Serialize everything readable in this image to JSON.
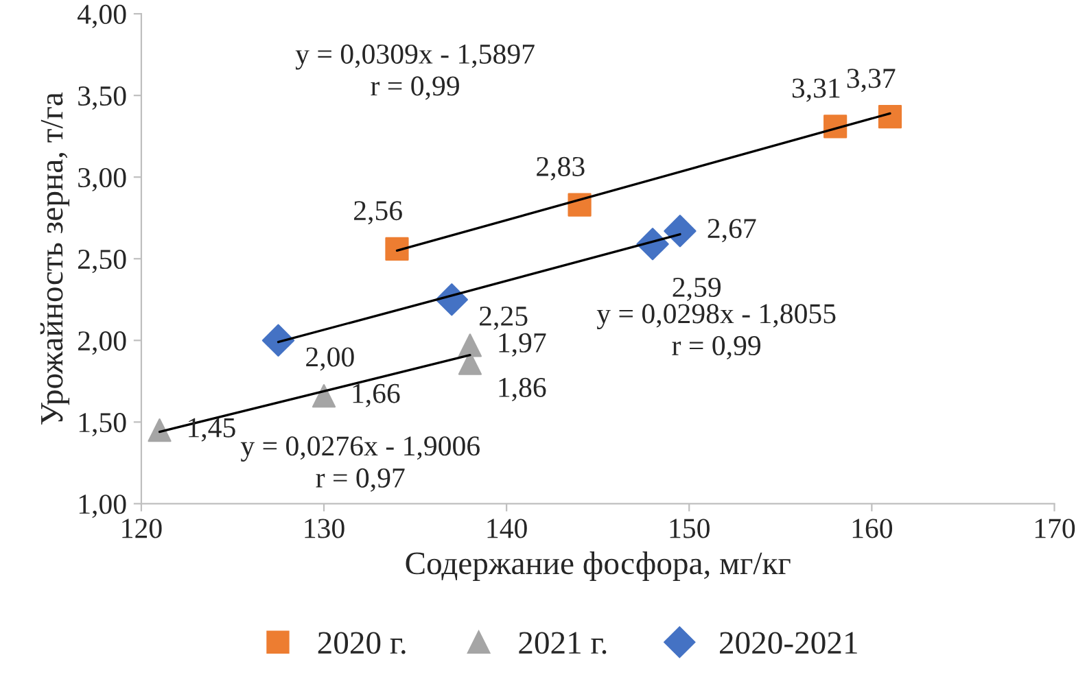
{
  "chart_data": {
    "type": "scatter",
    "xlabel": "Содержание фосфора, мг/кг",
    "ylabel": "Урожайность зерна, т/га",
    "xlim": [
      120,
      170
    ],
    "xticks": [
      120,
      130,
      140,
      150,
      160,
      170
    ],
    "ylim": [
      1.0,
      4.0
    ],
    "yticks": [
      {
        "value": 1.0,
        "label": "1,00"
      },
      {
        "value": 1.5,
        "label": "1,50"
      },
      {
        "value": 2.0,
        "label": "2,00"
      },
      {
        "value": 2.5,
        "label": "2,50"
      },
      {
        "value": 3.0,
        "label": "3,00"
      },
      {
        "value": 3.5,
        "label": "3,50"
      },
      {
        "value": 4.0,
        "label": "4,00"
      }
    ],
    "grid": false,
    "legend": "bottom",
    "series": [
      {
        "name": "2020 г.",
        "color": "#ed7d31",
        "marker": "square",
        "x": [
          134,
          144,
          158,
          161
        ],
        "values": [
          2.56,
          2.83,
          3.31,
          3.37
        ],
        "value_labels": [
          "2,56",
          "2,83",
          "3,31",
          "3,37"
        ]
      },
      {
        "name": "2021 г.",
        "color": "#a5a5a5",
        "marker": "triangle",
        "x": [
          121,
          130,
          138,
          138
        ],
        "values": [
          1.45,
          1.66,
          1.97,
          1.86
        ],
        "value_labels": [
          "1,45",
          "1,66",
          "1,97",
          "1,86"
        ]
      },
      {
        "name": "2020-2021",
        "color": "#4472c4",
        "marker": "diamond",
        "x": [
          127.5,
          137,
          148,
          149.5
        ],
        "values": [
          2.0,
          2.25,
          2.59,
          2.67
        ],
        "value_labels": [
          "2,00",
          "2,25",
          "2,59",
          "2,67"
        ]
      },
      {
        "type": "line",
        "color": "#000000",
        "x": [
          134,
          161
        ],
        "values": [
          2.55,
          3.39
        ]
      },
      {
        "type": "line",
        "color": "#000000",
        "x": [
          121,
          138
        ],
        "values": [
          1.44,
          1.91
        ]
      },
      {
        "type": "line",
        "color": "#000000",
        "x": [
          127.5,
          149.5
        ],
        "values": [
          1.99,
          2.65
        ]
      }
    ],
    "annotations": [
      "y = 0,0309x - 1,5897\nr = 0,99",
      "y = 0,0276x - 1,9006\nr = 0,97",
      "y = 0,0298x - 1,8055\nr = 0,99"
    ]
  }
}
